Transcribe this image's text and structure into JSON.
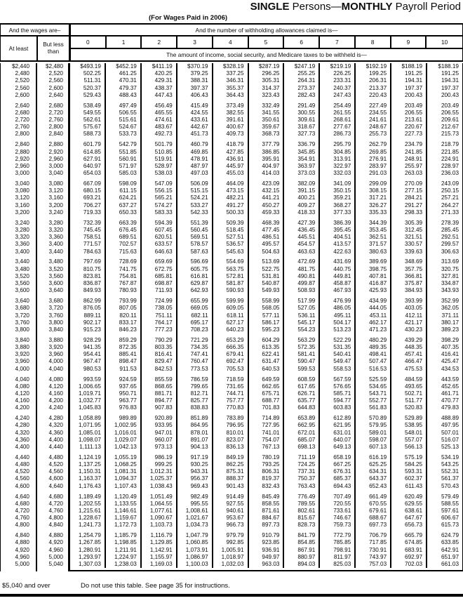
{
  "title": {
    "b1": "SINGLE",
    "n1": " Persons—",
    "b2": "MONTHLY",
    "n2": " Payroll Period",
    "subtitle": "(For Wages Paid in 2006)"
  },
  "header": {
    "wages_label": "And the wages are–",
    "at_least": "At least",
    "but_less_line1": "But less",
    "but_less_line2": "than",
    "allowances_label": "And the number of withholding allowances claimed is—",
    "allowance_numbers": [
      "0",
      "1",
      "2",
      "3",
      "4",
      "5",
      "6",
      "7",
      "8",
      "9",
      "10"
    ],
    "amount_label": "The amount of income, social security, and Medicare taxes to be withheld is—"
  },
  "table": {
    "groups": [
      [
        [
          "$2,440",
          "$2,480",
          "$493.19",
          "$452.19",
          "$411.19",
          "$370.19",
          "$328.19",
          "$287.19",
          "$247.19",
          "$219.19",
          "$192.19",
          "$188.19",
          "$188.19"
        ],
        [
          "2,480",
          "2,520",
          "502.25",
          "461.25",
          "420.25",
          "379.25",
          "337.25",
          "296.25",
          "255.25",
          "226.25",
          "199.25",
          "191.25",
          "191.25"
        ],
        [
          "2,520",
          "2,560",
          "511.31",
          "470.31",
          "429.31",
          "388.31",
          "346.31",
          "305.31",
          "264.31",
          "233.31",
          "206.31",
          "194.31",
          "194.31"
        ],
        [
          "2,560",
          "2,600",
          "520.37",
          "479.37",
          "438.37",
          "397.37",
          "355.37",
          "314.37",
          "273.37",
          "240.37",
          "213.37",
          "197.37",
          "197.37"
        ],
        [
          "2,600",
          "2,640",
          "529.43",
          "488.43",
          "447.43",
          "406.43",
          "364.43",
          "323.43",
          "282.43",
          "247.43",
          "220.43",
          "200.43",
          "200.43"
        ]
      ],
      [
        [
          "2,640",
          "2,680",
          "538.49",
          "497.49",
          "456.49",
          "415.49",
          "373.49",
          "332.49",
          "291.49",
          "254.49",
          "227.49",
          "203.49",
          "203.49"
        ],
        [
          "2,680",
          "2,720",
          "549.55",
          "506.55",
          "465.55",
          "424.55",
          "382.55",
          "341.55",
          "300.55",
          "261.55",
          "234.55",
          "206.55",
          "206.55"
        ],
        [
          "2,720",
          "2,760",
          "562.61",
          "515.61",
          "474.61",
          "433.61",
          "391.61",
          "350.61",
          "309.61",
          "268.61",
          "241.61",
          "213.61",
          "209.61"
        ],
        [
          "2,760",
          "2,800",
          "575.67",
          "524.67",
          "483.67",
          "442.67",
          "400.67",
          "359.67",
          "318.67",
          "277.67",
          "248.67",
          "220.67",
          "212.67"
        ],
        [
          "2,800",
          "2,840",
          "588.73",
          "533.73",
          "492.73",
          "451.73",
          "409.73",
          "368.73",
          "327.73",
          "286.73",
          "255.73",
          "227.73",
          "215.73"
        ]
      ],
      [
        [
          "2,840",
          "2,880",
          "601.79",
          "542.79",
          "501.79",
          "460.79",
          "418.79",
          "377.79",
          "336.79",
          "295.79",
          "262.79",
          "234.79",
          "218.79"
        ],
        [
          "2,880",
          "2,920",
          "614.85",
          "551.85",
          "510.85",
          "469.85",
          "427.85",
          "386.85",
          "345.85",
          "304.85",
          "269.85",
          "241.85",
          "221.85"
        ],
        [
          "2,920",
          "2,960",
          "627.91",
          "560.91",
          "519.91",
          "478.91",
          "436.91",
          "395.91",
          "354.91",
          "313.91",
          "276.91",
          "248.91",
          "224.91"
        ],
        [
          "2,960",
          "3,000",
          "640.97",
          "571.97",
          "528.97",
          "487.97",
          "445.97",
          "404.97",
          "363.97",
          "322.97",
          "283.97",
          "255.97",
          "228.97"
        ],
        [
          "3,000",
          "3,040",
          "654.03",
          "585.03",
          "538.03",
          "497.03",
          "455.03",
          "414.03",
          "373.03",
          "332.03",
          "291.03",
          "263.03",
          "236.03"
        ]
      ],
      [
        [
          "3,040",
          "3,080",
          "667.09",
          "598.09",
          "547.09",
          "506.09",
          "464.09",
          "423.09",
          "382.09",
          "341.09",
          "299.09",
          "270.09",
          "243.09"
        ],
        [
          "3,080",
          "3,120",
          "680.15",
          "611.15",
          "556.15",
          "515.15",
          "473.15",
          "432.15",
          "391.15",
          "350.15",
          "308.15",
          "277.15",
          "250.15"
        ],
        [
          "3,120",
          "3,160",
          "693.21",
          "624.21",
          "565.21",
          "524.21",
          "482.21",
          "441.21",
          "400.21",
          "359.21",
          "317.21",
          "284.21",
          "257.21"
        ],
        [
          "3,160",
          "3,200",
          "706.27",
          "637.27",
          "574.27",
          "533.27",
          "491.27",
          "450.27",
          "409.27",
          "368.27",
          "326.27",
          "291.27",
          "264.27"
        ],
        [
          "3,200",
          "3,240",
          "719.33",
          "650.33",
          "583.33",
          "542.33",
          "500.33",
          "459.33",
          "418.33",
          "377.33",
          "335.33",
          "298.33",
          "271.33"
        ]
      ],
      [
        [
          "3,240",
          "3,280",
          "732.39",
          "663.39",
          "594.39",
          "551.39",
          "509.39",
          "468.39",
          "427.39",
          "386.39",
          "344.39",
          "305.39",
          "278.39"
        ],
        [
          "3,280",
          "3,320",
          "745.45",
          "676.45",
          "607.45",
          "560.45",
          "518.45",
          "477.45",
          "436.45",
          "395.45",
          "353.45",
          "312.45",
          "285.45"
        ],
        [
          "3,320",
          "3,360",
          "758.51",
          "689.51",
          "620.51",
          "569.51",
          "527.51",
          "486.51",
          "445.51",
          "404.51",
          "362.51",
          "321.51",
          "292.51"
        ],
        [
          "3,360",
          "3,400",
          "771.57",
          "702.57",
          "633.57",
          "578.57",
          "536.57",
          "495.57",
          "454.57",
          "413.57",
          "371.57",
          "330.57",
          "299.57"
        ],
        [
          "3,400",
          "3,440",
          "784.63",
          "715.63",
          "646.63",
          "587.63",
          "545.63",
          "504.63",
          "463.63",
          "422.63",
          "380.63",
          "339.63",
          "306.63"
        ]
      ],
      [
        [
          "3,440",
          "3,480",
          "797.69",
          "728.69",
          "659.69",
          "596.69",
          "554.69",
          "513.69",
          "472.69",
          "431.69",
          "389.69",
          "348.69",
          "313.69"
        ],
        [
          "3,480",
          "3,520",
          "810.75",
          "741.75",
          "672.75",
          "605.75",
          "563.75",
          "522.75",
          "481.75",
          "440.75",
          "398.75",
          "357.75",
          "320.75"
        ],
        [
          "3,520",
          "3,560",
          "823.81",
          "754.81",
          "685.81",
          "616.81",
          "572.81",
          "531.81",
          "490.81",
          "449.81",
          "407.81",
          "366.81",
          "327.81"
        ],
        [
          "3,560",
          "3,600",
          "836.87",
          "767.87",
          "698.87",
          "629.87",
          "581.87",
          "540.87",
          "499.87",
          "458.87",
          "416.87",
          "375.87",
          "334.87"
        ],
        [
          "3,600",
          "3,640",
          "849.93",
          "780.93",
          "711.93",
          "642.93",
          "590.93",
          "549.93",
          "508.93",
          "467.93",
          "425.93",
          "384.93",
          "343.93"
        ]
      ],
      [
        [
          "3,640",
          "3,680",
          "862.99",
          "793.99",
          "724.99",
          "655.99",
          "599.99",
          "558.99",
          "517.99",
          "476.99",
          "434.99",
          "393.99",
          "352.99"
        ],
        [
          "3,680",
          "3,720",
          "876.05",
          "807.05",
          "738.05",
          "669.05",
          "609.05",
          "568.05",
          "527.05",
          "486.05",
          "444.05",
          "403.05",
          "362.05"
        ],
        [
          "3,720",
          "3,760",
          "889.11",
          "820.11",
          "751.11",
          "682.11",
          "618.11",
          "577.11",
          "536.11",
          "495.11",
          "453.11",
          "412.11",
          "371.11"
        ],
        [
          "3,760",
          "3,800",
          "902.17",
          "833.17",
          "764.17",
          "695.17",
          "627.17",
          "586.17",
          "545.17",
          "504.17",
          "462.17",
          "421.17",
          "380.17"
        ],
        [
          "3,800",
          "3,840",
          "915.23",
          "846.23",
          "777.23",
          "708.23",
          "640.23",
          "595.23",
          "554.23",
          "513.23",
          "471.23",
          "430.23",
          "389.23"
        ]
      ],
      [
        [
          "3,840",
          "3,880",
          "928.29",
          "859.29",
          "790.29",
          "721.29",
          "653.29",
          "604.29",
          "563.29",
          "522.29",
          "480.29",
          "439.29",
          "398.29"
        ],
        [
          "3,880",
          "3,920",
          "941.35",
          "872.35",
          "803.35",
          "734.35",
          "666.35",
          "613.35",
          "572.35",
          "531.35",
          "489.35",
          "448.35",
          "407.35"
        ],
        [
          "3,920",
          "3,960",
          "954.41",
          "885.41",
          "816.41",
          "747.41",
          "679.41",
          "622.41",
          "581.41",
          "540.41",
          "498.41",
          "457.41",
          "416.41"
        ],
        [
          "3,960",
          "4,000",
          "967.47",
          "898.47",
          "829.47",
          "760.47",
          "692.47",
          "631.47",
          "590.47",
          "549.47",
          "507.47",
          "466.47",
          "425.47"
        ],
        [
          "4,000",
          "4,040",
          "980.53",
          "911.53",
          "842.53",
          "773.53",
          "705.53",
          "640.53",
          "599.53",
          "558.53",
          "516.53",
          "475.53",
          "434.53"
        ]
      ],
      [
        [
          "4,040",
          "4,080",
          "993.59",
          "924.59",
          "855.59",
          "786.59",
          "718.59",
          "649.59",
          "608.59",
          "567.59",
          "525.59",
          "484.59",
          "443.59"
        ],
        [
          "4,080",
          "4,120",
          "1,006.65",
          "937.65",
          "868.65",
          "799.65",
          "731.65",
          "662.65",
          "617.65",
          "576.65",
          "534.65",
          "493.65",
          "452.65"
        ],
        [
          "4,120",
          "4,160",
          "1,019.71",
          "950.71",
          "881.71",
          "812.71",
          "744.71",
          "675.71",
          "626.71",
          "585.71",
          "543.71",
          "502.71",
          "461.71"
        ],
        [
          "4,160",
          "4,200",
          "1,032.77",
          "963.77",
          "894.77",
          "825.77",
          "757.77",
          "688.77",
          "635.77",
          "594.77",
          "552.77",
          "511.77",
          "470.77"
        ],
        [
          "4,200",
          "4,240",
          "1,045.83",
          "976.83",
          "907.83",
          "838.83",
          "770.83",
          "701.83",
          "644.83",
          "603.83",
          "561.83",
          "520.83",
          "479.83"
        ]
      ],
      [
        [
          "4,240",
          "4,280",
          "1,058.89",
          "989.89",
          "920.89",
          "851.89",
          "783.89",
          "714.89",
          "653.89",
          "612.89",
          "570.89",
          "529.89",
          "488.89"
        ],
        [
          "4,280",
          "4,320",
          "1,071.95",
          "1,002.95",
          "933.95",
          "864.95",
          "796.95",
          "727.95",
          "662.95",
          "621.95",
          "579.95",
          "538.95",
          "497.95"
        ],
        [
          "4,320",
          "4,360",
          "1,085.01",
          "1,016.01",
          "947.01",
          "878.01",
          "810.01",
          "741.01",
          "672.01",
          "631.01",
          "589.01",
          "548.01",
          "507.01"
        ],
        [
          "4,360",
          "4,400",
          "1,098.07",
          "1,029.07",
          "960.07",
          "891.07",
          "823.07",
          "754.07",
          "685.07",
          "640.07",
          "598.07",
          "557.07",
          "516.07"
        ],
        [
          "4,400",
          "4,440",
          "1,111.13",
          "1,042.13",
          "973.13",
          "904.13",
          "836.13",
          "767.13",
          "698.13",
          "649.13",
          "607.13",
          "566.13",
          "525.13"
        ]
      ],
      [
        [
          "4,440",
          "4,480",
          "1,124.19",
          "1,055.19",
          "986.19",
          "917.19",
          "849.19",
          "780.19",
          "711.19",
          "658.19",
          "616.19",
          "575.19",
          "534.19"
        ],
        [
          "4,480",
          "4,520",
          "1,137.25",
          "1,068.25",
          "999.25",
          "930.25",
          "862.25",
          "793.25",
          "724.25",
          "667.25",
          "625.25",
          "584.25",
          "543.25"
        ],
        [
          "4,520",
          "4,560",
          "1,150.31",
          "1,081.31",
          "1,012.31",
          "943.31",
          "875.31",
          "806.31",
          "737.31",
          "676.31",
          "634.31",
          "593.31",
          "552.31"
        ],
        [
          "4,560",
          "4,600",
          "1,163.37",
          "1,094.37",
          "1,025.37",
          "956.37",
          "888.37",
          "819.37",
          "750.37",
          "685.37",
          "643.37",
          "602.37",
          "561.37"
        ],
        [
          "4,600",
          "4,640",
          "1,176.43",
          "1,107.43",
          "1,038.43",
          "969.43",
          "901.43",
          "832.43",
          "763.43",
          "694.43",
          "652.43",
          "611.43",
          "570.43"
        ]
      ],
      [
        [
          "4,640",
          "4,680",
          "1,189.49",
          "1,120.49",
          "1,051.49",
          "982.49",
          "914.49",
          "845.49",
          "776.49",
          "707.49",
          "661.49",
          "620.49",
          "579.49"
        ],
        [
          "4,680",
          "4,720",
          "1,202.55",
          "1,133.55",
          "1,064.55",
          "995.55",
          "927.55",
          "858.55",
          "789.55",
          "720.55",
          "670.55",
          "629.55",
          "588.55"
        ],
        [
          "4,720",
          "4,760",
          "1,215.61",
          "1,146.61",
          "1,077.61",
          "1,008.61",
          "940.61",
          "871.61",
          "802.61",
          "733.61",
          "679.61",
          "638.61",
          "597.61"
        ],
        [
          "4,760",
          "4,800",
          "1,228.67",
          "1,159.67",
          "1,090.67",
          "1,021.67",
          "953.67",
          "884.67",
          "815.67",
          "746.67",
          "688.67",
          "647.67",
          "606.67"
        ],
        [
          "4,800",
          "4,840",
          "1,241.73",
          "1,172.73",
          "1,103.73",
          "1,034.73",
          "966.73",
          "897.73",
          "828.73",
          "759.73",
          "697.73",
          "656.73",
          "615.73"
        ]
      ],
      [
        [
          "4,840",
          "4,880",
          "1,254.79",
          "1,185.79",
          "1,116.79",
          "1,047.79",
          "979.79",
          "910.79",
          "841.79",
          "772.79",
          "706.79",
          "665.79",
          "624.79"
        ],
        [
          "4,880",
          "4,920",
          "1,267.85",
          "1,198.85",
          "1,129.85",
          "1,060.85",
          "992.85",
          "923.85",
          "854.85",
          "785.85",
          "717.85",
          "674.85",
          "633.85"
        ],
        [
          "4,920",
          "4,960",
          "1,280.91",
          "1,211.91",
          "1,142.91",
          "1,073.91",
          "1,005.91",
          "936.91",
          "867.91",
          "798.91",
          "730.91",
          "683.91",
          "642.91"
        ],
        [
          "4,960",
          "5,000",
          "1,293.97",
          "1,224.97",
          "1,155.97",
          "1,086.97",
          "1,018.97",
          "949.97",
          "880.97",
          "811.97",
          "743.97",
          "692.97",
          "651.97"
        ],
        [
          "5,000",
          "5,040",
          "1,307.03",
          "1,238.03",
          "1,169.03",
          "1,100.03",
          "1,032.03",
          "963.03",
          "894.03",
          "825.03",
          "757.03",
          "702.03",
          "661.03"
        ]
      ]
    ]
  },
  "footer": {
    "range": "$5,040 and over",
    "instruction": "Do not use this table. See page 35 for instructions."
  }
}
